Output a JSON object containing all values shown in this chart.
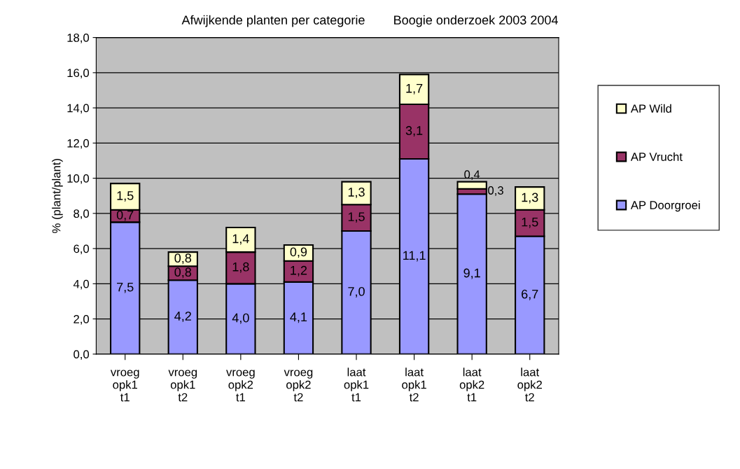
{
  "chart_data": {
    "type": "bar",
    "stacked": true,
    "title": "Afwijkende planten per categorie        Boogie onderzoek 2003 2004",
    "ylabel": "% (plant/plant)",
    "categories": [
      "vroeg\nopk1\nt1",
      "vroeg\nopk1\nt2",
      "vroeg\nopk2\nt1",
      "vroeg\nopk2\nt2",
      "laat\nopk1\nt1",
      "laat\nopk1\nt2",
      "laat\nopk2\nt1",
      "laat\nopk2\nt2"
    ],
    "series": [
      {
        "name": "AP Doorgroei",
        "color": "#9999ff",
        "values": [
          7.5,
          4.2,
          4.0,
          4.1,
          7.0,
          11.1,
          9.1,
          6.7
        ],
        "value_labels": [
          "7,5",
          "4,2",
          "4,0",
          "4,1",
          "7,0",
          "11,1",
          "9,1",
          "6,7"
        ]
      },
      {
        "name": "AP Vrucht",
        "color": "#993366",
        "values": [
          0.7,
          0.8,
          1.8,
          1.2,
          1.5,
          3.1,
          0.3,
          1.5
        ],
        "value_labels": [
          "0,7",
          "0,8",
          "1,8",
          "1,2",
          "1,5",
          "3,1",
          "0,3",
          "1,5"
        ]
      },
      {
        "name": "AP Wild",
        "color": "#ffffcc",
        "values": [
          1.5,
          0.8,
          1.4,
          0.9,
          1.3,
          1.7,
          0.4,
          1.3
        ],
        "value_labels": [
          "1,5",
          "0,8",
          "1,4",
          "0,9",
          "1,3",
          "1,7",
          "0,4",
          "1,3"
        ]
      }
    ],
    "ylim": [
      0,
      18
    ],
    "yticks": [
      {
        "value": 0,
        "label": "0,0"
      },
      {
        "value": 2,
        "label": "2,0"
      },
      {
        "value": 4,
        "label": "4,0"
      },
      {
        "value": 6,
        "label": "6,0"
      },
      {
        "value": 8,
        "label": "8,0"
      },
      {
        "value": 10,
        "label": "10,0"
      },
      {
        "value": 12,
        "label": "12,0"
      },
      {
        "value": 14,
        "label": "14,0"
      },
      {
        "value": 16,
        "label": "16,0"
      },
      {
        "value": 18,
        "label": "18,0"
      }
    ],
    "grid": "y",
    "legend": "right"
  }
}
